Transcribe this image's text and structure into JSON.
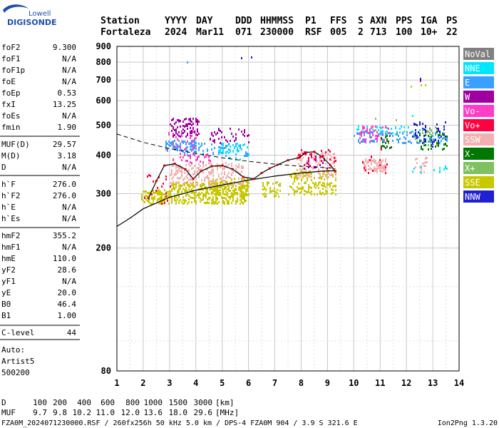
{
  "logo": {
    "line1": "Lowell",
    "line2": "DIGISONDE"
  },
  "header": {
    "labels": [
      "Station",
      "YYYY",
      "DAY",
      "DDD",
      "HHMMSS",
      "P1",
      "FFS",
      "S",
      "AXN",
      "PPS",
      "IGA",
      "PS"
    ],
    "values": [
      "Fortaleza",
      "2024",
      "Mar11",
      "071",
      "230000",
      "RSF",
      "005",
      "2",
      "713",
      "100",
      "10+",
      "22"
    ]
  },
  "params": [
    {
      "name": "foF2",
      "value": "9.300"
    },
    {
      "name": "foF1",
      "value": "N/A"
    },
    {
      "name": "foF1p",
      "value": "N/A"
    },
    {
      "name": "foE",
      "value": "N/A"
    },
    {
      "name": "foEp",
      "value": "0.53"
    },
    {
      "name": "fxI",
      "value": "13.25"
    },
    {
      "name": "foEs",
      "value": "N/A"
    },
    {
      "name": "fmin",
      "value": "1.90"
    },
    {
      "name": "MUF(D)",
      "value": "29.57"
    },
    {
      "name": "M(D)",
      "value": "3.18"
    },
    {
      "name": "D",
      "value": "N/A"
    },
    {
      "name": "h`F",
      "value": "276.0"
    },
    {
      "name": "h`F2",
      "value": "276.0"
    },
    {
      "name": "h`E",
      "value": "N/A"
    },
    {
      "name": "h`Es",
      "value": "N/A"
    },
    {
      "name": "hmF2",
      "value": "355.2"
    },
    {
      "name": "hmF1",
      "value": "N/A"
    },
    {
      "name": "hmE",
      "value": "110.0"
    },
    {
      "name": "yF2",
      "value": "28.6"
    },
    {
      "name": "yF1",
      "value": "N/A"
    },
    {
      "name": "yE",
      "value": "20.0"
    },
    {
      "name": "B0",
      "value": "46.4"
    },
    {
      "name": "B1",
      "value": "1.00"
    },
    {
      "name": "C-level",
      "value": "44"
    }
  ],
  "auto": [
    "Auto:",
    "Artist5",
    "500200"
  ],
  "legend": [
    {
      "label": "NoVal",
      "color": "#808080"
    },
    {
      "label": "NNE",
      "color": "#00e6ff"
    },
    {
      "label": "E",
      "color": "#3aa0ff"
    },
    {
      "label": "W",
      "color": "#a000a0"
    },
    {
      "label": "Vo-",
      "color": "#ff3cc8"
    },
    {
      "label": "Vo+",
      "color": "#ff0040"
    },
    {
      "label": "SSW",
      "color": "#f4b0b0"
    },
    {
      "label": "X-",
      "color": "#007800"
    },
    {
      "label": "X+",
      "color": "#80c060"
    },
    {
      "label": "SSE",
      "color": "#c8c800"
    },
    {
      "label": "NNW",
      "color": "#2020d0"
    }
  ],
  "bottom": {
    "d_label": "D",
    "d_values": [
      "100",
      "200",
      "400",
      "600",
      "800",
      "1000",
      "1500",
      "3000"
    ],
    "d_unit": "[km]",
    "muf_label": "MUF",
    "muf_values": [
      "9.7",
      "9.8",
      "10.2",
      "11.0",
      "12.0",
      "13.6",
      "18.0",
      "29.6"
    ],
    "muf_unit": "[MHz]",
    "footer": "FZA0M_2024071230000.RSF / 260fx256h 50 kHz 5.0 km / DPS-4 FZA0M 904 / 3.9 S 321.6 E",
    "version": "Ion2Png 1.3.20"
  },
  "chart_data": {
    "type": "scatter",
    "xlim": [
      1,
      14
    ],
    "ylim": [
      80,
      900
    ],
    "y_scale": "log",
    "x_ticks": [
      1,
      2,
      3,
      4,
      5,
      6,
      7,
      8,
      9,
      10,
      11,
      12,
      13,
      14
    ],
    "y_ticks": [
      80,
      200,
      300,
      400,
      500,
      600,
      700,
      800,
      900
    ],
    "grid": true,
    "legend_position": "right",
    "trace": {
      "x": [
        2.2,
        2.5,
        2.8,
        3.2,
        3.6,
        3.9,
        4.2,
        4.6,
        5.0,
        5.4,
        5.8,
        6.2,
        6.5,
        6.8,
        7.1,
        7.5,
        7.9,
        8.2,
        8.5,
        8.8,
        9.1,
        9.3
      ],
      "y": [
        290,
        330,
        370,
        375,
        360,
        335,
        355,
        368,
        370,
        360,
        340,
        335,
        350,
        362,
        372,
        385,
        392,
        408,
        410,
        395,
        372,
        355
      ]
    },
    "profile": {
      "x": [
        1.0,
        1.5,
        2.0,
        3.0,
        4.0,
        5.0,
        6.0,
        7.0,
        8.0,
        8.8,
        9.3
      ],
      "y": [
        235,
        250,
        268,
        292,
        308,
        320,
        332,
        342,
        350,
        355,
        356
      ]
    },
    "dashed_curve": {
      "x": [
        1.0,
        2.0,
        3.0,
        4.0,
        5.0,
        6.0,
        7.0,
        8.0,
        9.0,
        9.3
      ],
      "y": [
        468,
        440,
        420,
        405,
        392,
        382,
        374,
        368,
        364,
        362
      ]
    },
    "clusters": [
      {
        "x": [
          1.9,
          3.0
        ],
        "y": [
          280,
          310
        ],
        "n": 110,
        "c": 9
      },
      {
        "x": [
          3.0,
          6.0
        ],
        "y": [
          280,
          330
        ],
        "n": 420,
        "c": 9
      },
      {
        "x": [
          4.5,
          6.0
        ],
        "y": [
          300,
          340
        ],
        "n": 90,
        "c": 9
      },
      {
        "x": [
          6.5,
          7.2
        ],
        "y": [
          295,
          330
        ],
        "n": 45,
        "c": 9
      },
      {
        "x": [
          7.5,
          9.3
        ],
        "y": [
          300,
          360
        ],
        "n": 170,
        "c": 9
      },
      {
        "x": [
          3.0,
          5.8
        ],
        "y": [
          320,
          380
        ],
        "n": 220,
        "c": 6
      },
      {
        "x": [
          7.8,
          9.3
        ],
        "y": [
          340,
          410
        ],
        "n": 110,
        "c": 6
      },
      {
        "x": [
          10.3,
          11.2
        ],
        "y": [
          355,
          390
        ],
        "n": 90,
        "c": 6
      },
      {
        "x": [
          12.3,
          12.8
        ],
        "y": [
          350,
          400
        ],
        "n": 20,
        "c": 6
      },
      {
        "x": [
          2.8,
          4.0
        ],
        "y": [
          410,
          450
        ],
        "n": 90,
        "c": 2
      },
      {
        "x": [
          3.6,
          6.0
        ],
        "y": [
          400,
          440
        ],
        "n": 60,
        "c": 2
      },
      {
        "x": [
          4.8,
          6.0
        ],
        "y": [
          390,
          440
        ],
        "n": 40,
        "c": 1
      },
      {
        "x": [
          10.0,
          13.6
        ],
        "y": [
          440,
          480
        ],
        "n": 110,
        "c": 2
      },
      {
        "x": [
          10.0,
          12.6
        ],
        "y": [
          470,
          500
        ],
        "n": 40,
        "c": 1
      },
      {
        "x": [
          3.0,
          4.1
        ],
        "y": [
          460,
          530
        ],
        "n": 100,
        "c": 3
      },
      {
        "x": [
          4.5,
          6.0
        ],
        "y": [
          440,
          490
        ],
        "n": 40,
        "c": 3
      },
      {
        "x": [
          2.8,
          4.0
        ],
        "y": [
          420,
          480
        ],
        "n": 30,
        "c": 4
      },
      {
        "x": [
          3.0,
          4.5
        ],
        "y": [
          380,
          410
        ],
        "n": 30,
        "c": 4
      },
      {
        "x": [
          10.2,
          11.4
        ],
        "y": [
          440,
          500
        ],
        "n": 50,
        "c": 4
      },
      {
        "x": [
          12.2,
          13.5
        ],
        "y": [
          430,
          520
        ],
        "n": 50,
        "c": 10
      },
      {
        "x": [
          11.0,
          11.4
        ],
        "y": [
          420,
          470
        ],
        "n": 20,
        "c": 7
      },
      {
        "x": [
          12.5,
          13.5
        ],
        "y": [
          420,
          480
        ],
        "n": 40,
        "c": 7
      },
      {
        "x": [
          12.3,
          13.2
        ],
        "y": [
          430,
          500
        ],
        "n": 20,
        "c": 8
      },
      {
        "x": [
          7.9,
          9.3
        ],
        "y": [
          370,
          420
        ],
        "n": 30,
        "c": 5
      },
      {
        "x": [
          2.0,
          3.0
        ],
        "y": [
          280,
          350
        ],
        "n": 20,
        "c": 5
      },
      {
        "x": [
          10.3,
          11.3
        ],
        "y": [
          350,
          420
        ],
        "n": 15,
        "c": 5
      },
      {
        "x": [
          8.0,
          9.0
        ],
        "y": [
          360,
          400
        ],
        "n": 15,
        "c": 3
      },
      {
        "x": [
          12.2,
          13.6
        ],
        "y": [
          350,
          380
        ],
        "n": 12,
        "c": 1
      }
    ],
    "points": [
      {
        "x": 5.7,
        "y": 830,
        "c": 10
      },
      {
        "x": 6.1,
        "y": 835,
        "c": 10
      },
      {
        "x": 3.65,
        "y": 805,
        "c": 2
      },
      {
        "x": 12.5,
        "y": 712,
        "c": 10
      },
      {
        "x": 12.5,
        "y": 700,
        "c": 3
      },
      {
        "x": 12.55,
        "y": 678,
        "c": 9
      },
      {
        "x": 12.7,
        "y": 678,
        "c": 9
      },
      {
        "x": 12.15,
        "y": 670,
        "c": 9
      },
      {
        "x": 11.6,
        "y": 522,
        "c": 8
      },
      {
        "x": 10.8,
        "y": 528,
        "c": 8
      },
      {
        "x": 12.2,
        "y": 540,
        "c": 1
      }
    ]
  }
}
